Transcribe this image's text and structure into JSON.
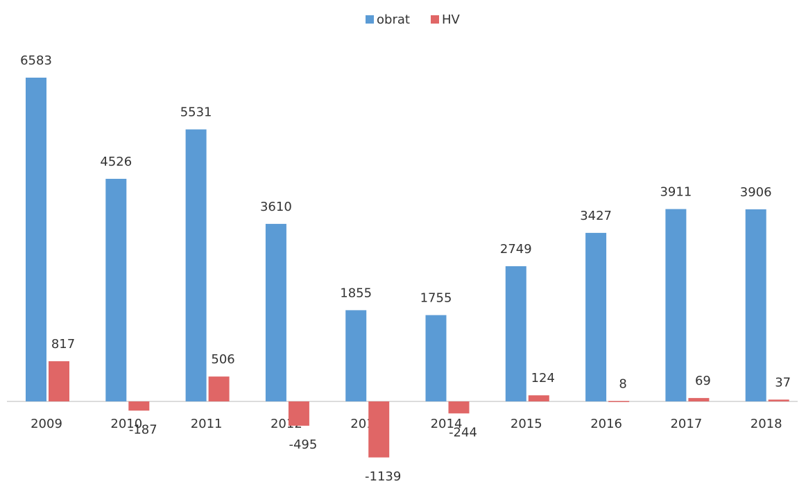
{
  "chart_data": {
    "type": "bar",
    "categories": [
      "2009",
      "2010",
      "2011",
      "2012",
      "2013",
      "2014",
      "2015",
      "2016",
      "2017",
      "2018"
    ],
    "series": [
      {
        "name": "obrat",
        "color": "#5b9bd5",
        "values": [
          6583,
          4526,
          5531,
          3610,
          1855,
          1755,
          2749,
          3427,
          3911,
          3906
        ]
      },
      {
        "name": "HV",
        "color": "#e06666",
        "values": [
          817,
          -187,
          506,
          -495,
          -1139,
          -244,
          124,
          8,
          69,
          37
        ]
      }
    ],
    "legend": "top"
  }
}
